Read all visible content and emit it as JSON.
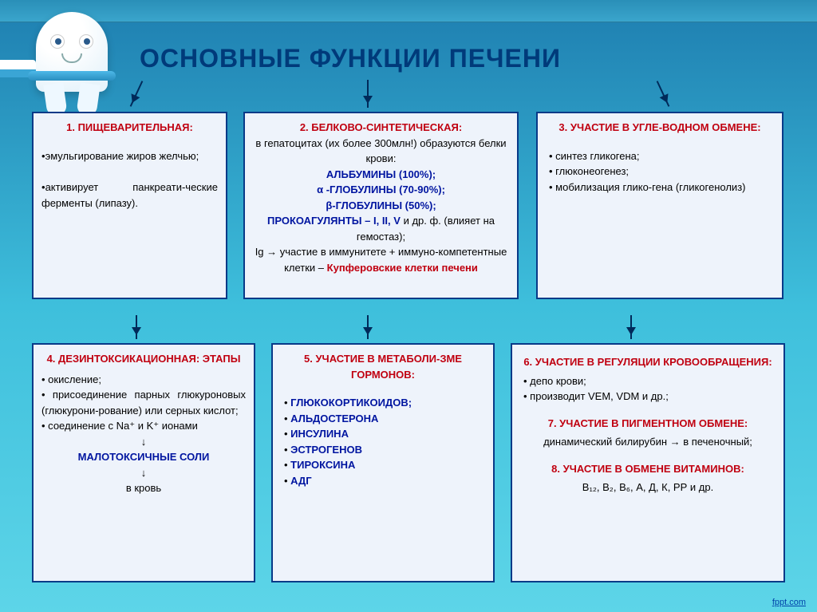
{
  "title": "ОСНОВНЫЕ ФУНКЦИИ ПЕЧЕНИ",
  "footer": "fppt.com",
  "colors": {
    "box_border": "#083a88",
    "box_bg": "#eef3fb",
    "heading_red": "#c00010",
    "accent_blue": "#0015a0",
    "title_color": "#003a7a"
  },
  "boxes": {
    "b1": {
      "title": "1. ПИЩЕВАРИТЕЛЬНАЯ:",
      "items": [
        "эмульгирование жиров желчью;",
        "активирует панкреати-ческие ферменты (липазу)."
      ]
    },
    "b2": {
      "title": "2. БЕЛКОВО-СИНТЕТИЧЕСКАЯ:",
      "intro": "в гепатоцитах (их более 300млн!) образуются белки крови:",
      "lines": [
        {
          "t": "АЛЬБУМИНЫ (100%);",
          "c": "blue"
        },
        {
          "t": "α -ГЛОБУЛИНЫ (70-90%);",
          "c": "blue"
        },
        {
          "t": "β-ГЛОБУЛИНЫ (50%);",
          "c": "blue"
        },
        {
          "t": "ПРОКОАГУЛЯНТЫ – I, II, V",
          "c": "blue"
        }
      ],
      "after_coag": " и др. ф. (влияет на гемостаз);",
      "ig_line": "Ig → участие в иммунитете + иммуно-компетентные клетки – ",
      "kupfer": "Купферовские клетки печени"
    },
    "b3": {
      "title": "3. УЧАСТИЕ В УГЛЕ-ВОДНОМ ОБМЕНЕ:",
      "items": [
        "синтез гликогена;",
        "глюконеогенез;",
        "мобилизация глико-гена (гликогенолиз)"
      ]
    },
    "b4": {
      "title": "4. ДЕЗИНТОКСИКАЦИОННАЯ: ЭТАПЫ",
      "items": [
        "окисление;",
        "присоединение парных глюкуроновых (глюкурони-рование) или серных кислот;",
        "соединение с Na⁺ и K⁺ ионами"
      ],
      "arrow1": "↓",
      "result": "МАЛОТОКСИЧНЫЕ СОЛИ",
      "arrow2": "↓",
      "dest": "в кровь"
    },
    "b5": {
      "title": "5. УЧАСТИЕ В МЕТАБОЛИ-ЗМЕ ГОРМОНОВ:",
      "items": [
        "ГЛЮКОКОРТИКОИДОВ;",
        "АЛЬДОСТЕРОНА",
        "ИНСУЛИНА",
        "ЭСТРОГЕНОВ",
        "ТИРОКСИНА",
        "АДГ"
      ]
    },
    "b6": {
      "s1_title": "6. УЧАСТИЕ В РЕГУЛЯЦИИ КРОВООБРАЩЕНИЯ:",
      "s1_items": [
        "депо крови;",
        "производит VEM, VDM и др.;"
      ],
      "s2_title": "7. УЧАСТИЕ В ПИГМЕНТНОМ ОБМЕНЕ:",
      "s2_text": "динамический билирубин → в печеночный;",
      "s3_title": "8. УЧАСТИЕ В ОБМЕНЕ ВИТАМИНОВ:",
      "s3_text": "В₁₂, В₂, В₆, А, Д, К, РР и др."
    }
  }
}
